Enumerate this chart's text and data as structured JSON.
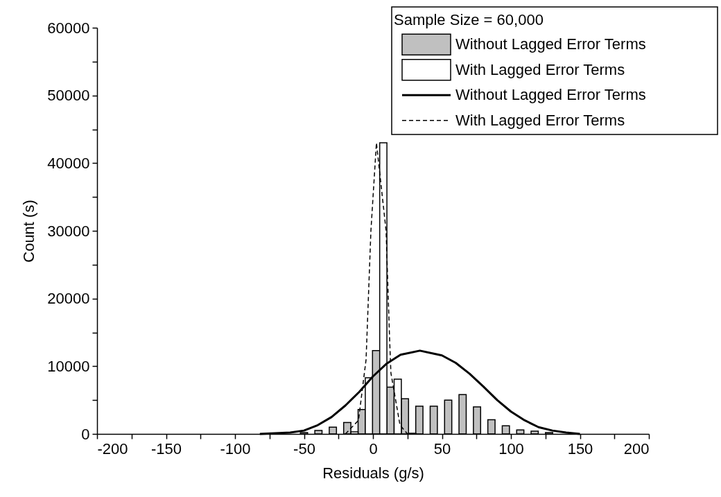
{
  "chart_data": {
    "type": "histogram",
    "xlabel": "Residuals (g/s)",
    "ylabel": "Count (s)",
    "legend_title": "Sample Size = 60,000",
    "bins": [
      -52.6,
      -42.15,
      -31.7,
      -21.25,
      -10.8,
      -0.35,
      10.1,
      20.55,
      31.0,
      41.45,
      51.9,
      62.35,
      72.8,
      83.25,
      93.7,
      104.15,
      114.6,
      125.05,
      135.5
    ],
    "series": [
      {
        "type": "histogram",
        "name": "Without Lagged Error Terms",
        "color": "#c0c0c0",
        "values": [
          200,
          500,
          1000,
          1700,
          3600,
          12300,
          6900,
          5200,
          4100,
          4100,
          5000,
          5800,
          4000,
          2100,
          1200,
          600,
          400,
          200
        ]
      },
      {
        "type": "histogram",
        "name": "With Lagged Error Terms",
        "color": "#ffffff",
        "values": [
          null,
          null,
          null,
          300,
          8300,
          43000,
          8100,
          100,
          null,
          null,
          null,
          null,
          null,
          null,
          null,
          null,
          null,
          null
        ]
      },
      {
        "type": "line",
        "name": "Without Lagged Error Terms",
        "color": "#000000",
        "line_style": "solid",
        "x": [
          -82,
          -60,
          -50,
          -40,
          -30,
          -20,
          -10,
          0,
          10,
          20,
          34,
          50,
          60,
          70,
          80,
          90,
          100,
          110,
          120,
          130,
          140,
          150
        ],
        "values": [
          0,
          200,
          500,
          1300,
          2500,
          4200,
          6200,
          8500,
          10400,
          11700,
          12300,
          11600,
          10500,
          8900,
          7000,
          5000,
          3300,
          2000,
          1000,
          500,
          200,
          0
        ]
      },
      {
        "type": "line",
        "name": "With Lagged Error Terms",
        "color": "#000000",
        "line_style": "dashed",
        "x": [
          -20,
          -10.5,
          -5,
          -1.5,
          2.5,
          9.5,
          12,
          13,
          19.6,
          25
        ],
        "values": [
          0,
          2000,
          11000,
          30000,
          43000,
          30000,
          14300,
          9000,
          1300,
          0
        ]
      }
    ],
    "xlim": [
      -200,
      200
    ],
    "xticks": [
      -200,
      {
        "value": -175,
        "label": null
      },
      -150,
      {
        "value": -125,
        "label": null
      },
      -100,
      {
        "value": -75,
        "label": null
      },
      -50,
      {
        "value": -25,
        "label": null
      },
      0,
      {
        "value": 25,
        "label": null
      },
      50,
      {
        "value": 75,
        "label": null
      },
      100,
      {
        "value": 125,
        "label": null
      },
      150,
      {
        "value": 175,
        "label": null
      },
      200
    ],
    "ylim": [
      0,
      60000
    ],
    "yticks": [
      0,
      {
        "value": 5000,
        "label": null
      },
      10000,
      {
        "value": 15000,
        "label": null
      },
      20000,
      {
        "value": 25000,
        "label": null
      },
      30000,
      {
        "value": 35000,
        "label": null
      },
      40000,
      {
        "value": 45000,
        "label": null
      },
      50000,
      {
        "value": 55000,
        "label": null
      },
      60000
    ],
    "legend": "top right",
    "grid": false
  }
}
